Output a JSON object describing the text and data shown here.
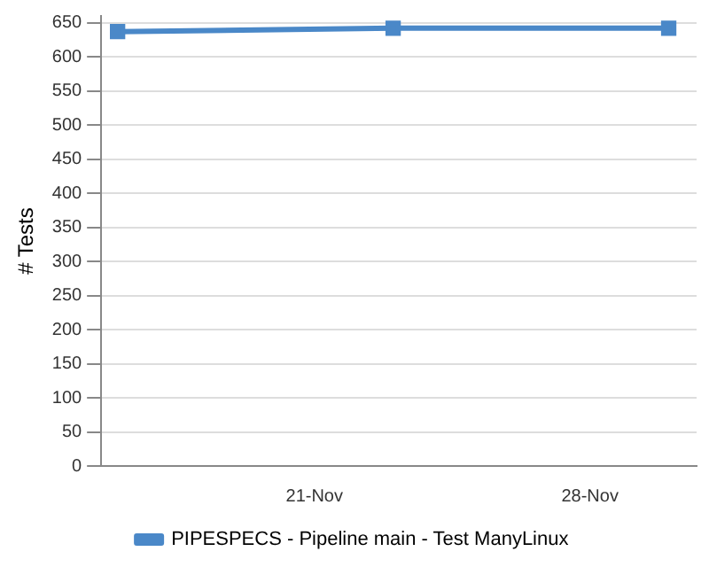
{
  "chart_data": {
    "type": "line",
    "ylabel": "# Tests",
    "x": [
      "--11-16",
      "--11-23",
      "--11-30"
    ],
    "series": [
      {
        "name": "PIPESPECS - Pipeline main - Test ManyLinux",
        "color": "#4a88c8",
        "values": [
          637,
          642,
          642
        ]
      }
    ],
    "xlim": [
      "--11-15T14:00",
      "--11-30T17:00"
    ],
    "xticks": [
      {
        "value": "--11-21",
        "label": "21-Nov"
      },
      {
        "value": "--11-28",
        "label": "28-Nov"
      }
    ],
    "ylim": [
      0,
      660
    ],
    "yticks": [
      0,
      50,
      100,
      150,
      200,
      250,
      300,
      350,
      400,
      450,
      500,
      550,
      600,
      650
    ],
    "grid": "y",
    "legend": "bottom",
    "marker": "square",
    "line_style": "solid"
  }
}
